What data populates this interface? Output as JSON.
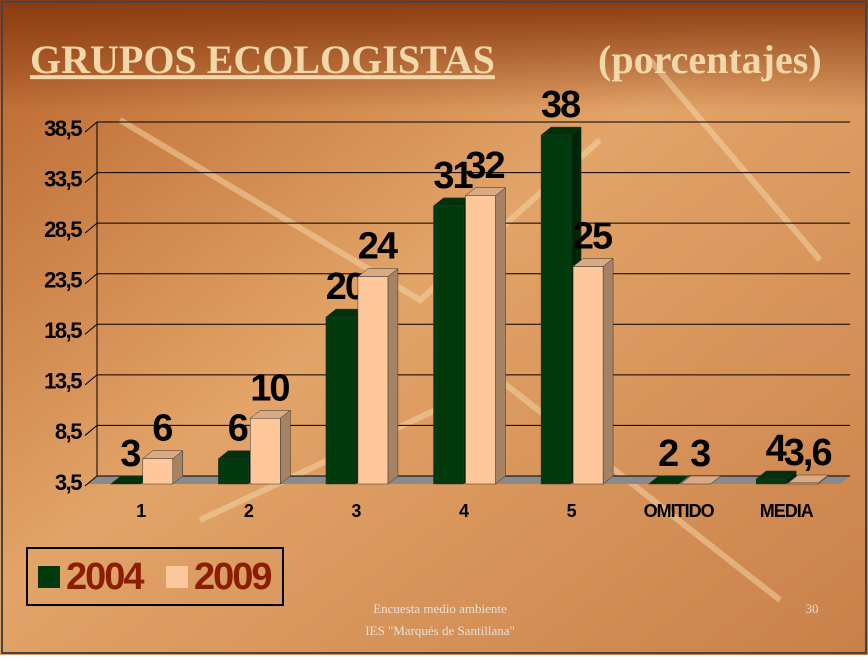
{
  "title": "GRUPOS ECOLOGISTAS",
  "subtitle": "(porcentajes)",
  "footer": {
    "line1": "Encuesta medio ambiente",
    "line2": "IES \"Marqués de Santillana\"",
    "page": "30"
  },
  "chart_data": {
    "type": "bar3d",
    "categories": [
      "1",
      "2",
      "3",
      "4",
      "5",
      "OMITIDO",
      "MEDIA"
    ],
    "series": [
      {
        "name": "2004",
        "color": "#003a0c",
        "values": [
          3,
          6,
          20,
          31,
          38,
          2,
          4
        ]
      },
      {
        "name": "2009",
        "color": "#ffc89a",
        "values": [
          6,
          10,
          24,
          32,
          25,
          3,
          3.6
        ],
        "value_labels": [
          "6",
          "10",
          "24",
          "32",
          "25",
          "3",
          "3,6"
        ]
      }
    ],
    "ylim": [
      3.5,
      38.5
    ],
    "yticks": [
      {
        "value": 3.5,
        "label": "3,5"
      },
      {
        "value": 8.5,
        "label": "8,5"
      },
      {
        "value": 13.5,
        "label": "13,5"
      },
      {
        "value": 18.5,
        "label": "18,5"
      },
      {
        "value": 23.5,
        "label": "23,5"
      },
      {
        "value": 28.5,
        "label": "28,5"
      },
      {
        "value": 33.5,
        "label": "33,5"
      },
      {
        "value": 38.5,
        "label": "38,5"
      }
    ],
    "grid": true,
    "legend": "bottom-left"
  }
}
